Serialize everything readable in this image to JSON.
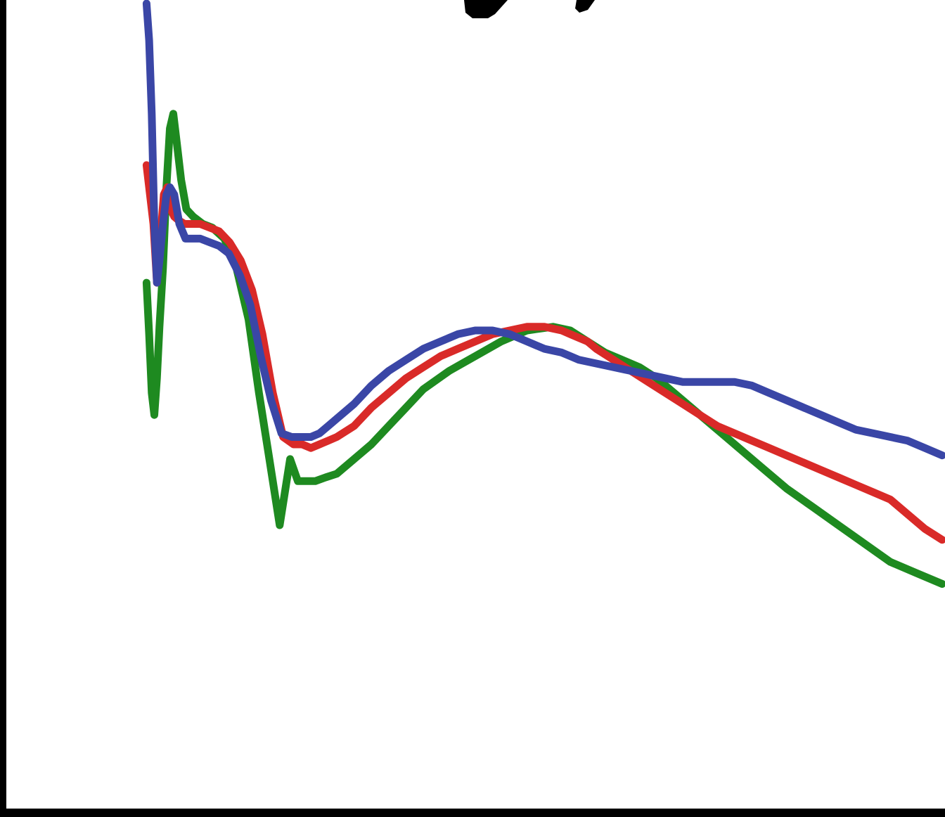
{
  "chart_data": {
    "type": "line",
    "title": "",
    "xlabel": "",
    "ylabel": "",
    "xlim": [
      0,
      100
    ],
    "ylim": [
      0,
      100
    ],
    "grid": false,
    "legend": "none",
    "colors": {
      "background": "#ffffff",
      "axis": "#000000"
    },
    "series": [
      {
        "color": "#1e8a20",
        "x": [
          8,
          8.3,
          8.6,
          8.9,
          9.2,
          9.5,
          9.9,
          10.3,
          10.7,
          11.1,
          11.5,
          12,
          12.6,
          13.4,
          14.5,
          15.6,
          17,
          18.4,
          19.8,
          21,
          22.2,
          23.4,
          24.6,
          25.5,
          26.5,
          27.5,
          28.7,
          30,
          32,
          34,
          36,
          38,
          40,
          43,
          46,
          49,
          52,
          55,
          57,
          59,
          61,
          63,
          65,
          67,
          70,
          73,
          76,
          79,
          82,
          85,
          88,
          91,
          94,
          97,
          100
        ],
        "y": [
          62,
          55,
          47,
          44,
          49,
          56,
          64,
          75,
          83,
          85,
          81,
          76,
          72,
          71,
          70,
          69.5,
          68,
          64,
          57,
          47,
          38,
          29,
          38,
          35,
          35,
          35,
          35.5,
          36,
          38,
          40,
          42.5,
          45,
          47.5,
          50,
          52,
          54,
          55.5,
          56,
          55.5,
          54,
          52.5,
          51.5,
          50.5,
          49,
          46,
          43,
          40,
          37,
          34,
          31.5,
          29,
          26.5,
          24,
          22.5,
          21
        ]
      },
      {
        "color": "#d92a28",
        "x": [
          8,
          8.4,
          8.8,
          9.2,
          9.6,
          10,
          10.4,
          10.8,
          11.2,
          11.7,
          12.4,
          13.2,
          14.2,
          15.3,
          16.4,
          17.6,
          18.9,
          20.2,
          21.4,
          22.6,
          23.8,
          25,
          26,
          27,
          28,
          29,
          30,
          32,
          34,
          36,
          38,
          40,
          42,
          44,
          46,
          48,
          50,
          52,
          54,
          56,
          57,
          58,
          59,
          60,
          62,
          64,
          66,
          68,
          70,
          72,
          74,
          76,
          78,
          80,
          82,
          84,
          86,
          88,
          90,
          92,
          94,
          96,
          98,
          100
        ],
        "y": [
          78,
          74,
          70,
          62,
          68,
          74,
          75,
          72,
          71,
          70.5,
          70,
          70,
          70,
          69.5,
          69,
          67.5,
          65,
          61,
          55,
          47,
          41,
          40,
          40,
          39.5,
          40,
          40.5,
          41,
          42.5,
          45,
          47,
          49,
          50.5,
          52,
          53,
          54,
          55,
          55.5,
          56,
          56,
          55.5,
          55,
          54.5,
          54,
          53,
          51.5,
          50,
          48.5,
          47,
          45.5,
          44,
          42.5,
          41.5,
          40.5,
          39.5,
          38.5,
          37.5,
          36.5,
          35.5,
          34.5,
          33.5,
          32.5,
          30.5,
          28.5,
          27
        ]
      },
      {
        "color": "#3a46a6",
        "x": [
          8,
          8.3,
          8.6,
          8.9,
          9.2,
          9.5,
          9.9,
          10.3,
          10.7,
          11.2,
          11.8,
          12.5,
          13.3,
          14.2,
          15.3,
          16.4,
          17.5,
          18.8,
          20,
          21.2,
          22.4,
          23.6,
          24.8,
          26,
          27,
          28,
          29,
          30,
          32,
          34,
          36,
          38,
          40,
          42,
          44,
          46,
          48,
          50,
          52,
          54,
          56,
          57,
          58,
          60,
          62,
          64,
          66,
          68,
          70,
          72,
          74,
          76,
          78,
          80,
          82,
          84,
          86,
          88,
          90,
          92,
          94,
          96,
          98,
          100
        ],
        "y": [
          100,
          95,
          85,
          70,
          62,
          65,
          70,
          74,
          75,
          74,
          70,
          68,
          68,
          68,
          67.5,
          67,
          66,
          63,
          59,
          52,
          46,
          41.5,
          41,
          41,
          41,
          41.5,
          42.5,
          43.5,
          45.5,
          48,
          50,
          51.5,
          53,
          54,
          55,
          55.5,
          55.5,
          55,
          54,
          53,
          52.5,
          52,
          51.5,
          51,
          50.5,
          50,
          49.5,
          49,
          48.5,
          48.5,
          48.5,
          48.5,
          48,
          47,
          46,
          45,
          44,
          43,
          42,
          41.5,
          41,
          40.5,
          39.5,
          38.5
        ]
      }
    ]
  }
}
